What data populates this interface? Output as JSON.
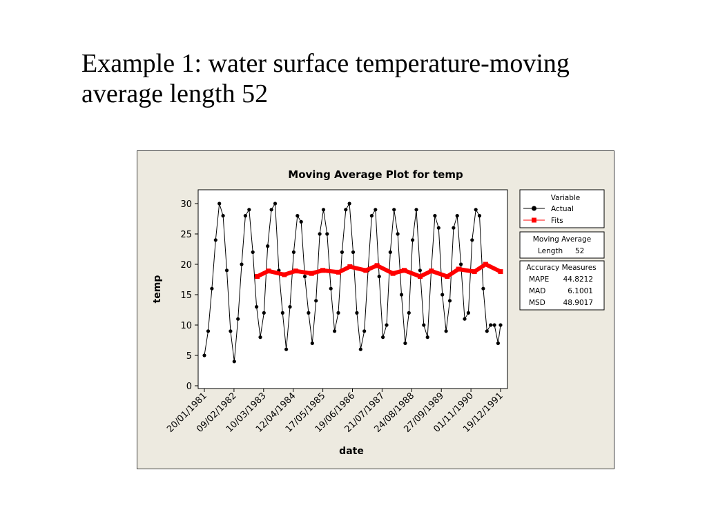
{
  "slide": {
    "title_line1": "Example 1: water surface temperature-moving",
    "title_line2": "average length 52"
  },
  "colors": {
    "actual": "#000000",
    "fits": "#ff0000",
    "panel_bg": "#edeae0",
    "plot_bg": "#ffffff"
  },
  "legends": {
    "variable": {
      "title": "Variable",
      "actual": "Actual",
      "fits": "Fits"
    },
    "moving_average": {
      "title": "Moving Average",
      "length_label": "Length",
      "length_value": "52"
    },
    "accuracy": {
      "title": "Accuracy Measures",
      "rows": [
        {
          "name": "MAPE",
          "value": "44.8212"
        },
        {
          "name": "MAD",
          "value": "6.1001"
        },
        {
          "name": "MSD",
          "value": "48.9017"
        }
      ]
    }
  },
  "chart_data": {
    "type": "line",
    "title": "Moving Average Plot for temp",
    "xlabel": "date",
    "ylabel": "temp",
    "ylim": [
      0,
      32
    ],
    "yticks": [
      0,
      5,
      10,
      15,
      20,
      25,
      30
    ],
    "ytick_labels": [
      "0",
      "5",
      "10",
      "15",
      "20",
      "25",
      "30"
    ],
    "xtick_labels": [
      "20/01/1981",
      "09/02/1982",
      "10/03/1983",
      "12/04/1984",
      "17/05/1985",
      "19/06/1986",
      "21/07/1987",
      "24/08/1988",
      "27/09/1989",
      "01/11/1990",
      "19/12/1991"
    ],
    "x_range": [
      "1981-01-20",
      "1991-12-19"
    ],
    "legend_position": "right",
    "grid": false,
    "series": [
      {
        "name": "Actual",
        "marker": "circle",
        "color": "#000000",
        "x": [
          "1981-01-20",
          "1981-03-12",
          "1981-05-01",
          "1981-06-20",
          "1981-08-10",
          "1981-09-29",
          "1981-11-18",
          "1982-01-07",
          "1982-02-26",
          "1982-04-17",
          "1982-06-06",
          "1982-07-26",
          "1982-09-14",
          "1982-11-03",
          "1982-12-23",
          "1983-02-11",
          "1983-04-02",
          "1983-05-22",
          "1983-07-11",
          "1983-08-30",
          "1983-10-19",
          "1983-12-08",
          "1984-01-27",
          "1984-03-17",
          "1984-05-06",
          "1984-06-25",
          "1984-08-14",
          "1984-10-03",
          "1984-11-22",
          "1985-01-11",
          "1985-03-02",
          "1985-04-21",
          "1985-06-10",
          "1985-07-30",
          "1985-09-18",
          "1985-11-07",
          "1985-12-27",
          "1986-02-15",
          "1986-04-06",
          "1986-05-26",
          "1986-07-15",
          "1986-09-03",
          "1986-10-23",
          "1986-12-12",
          "1987-01-31",
          "1987-03-22",
          "1987-05-11",
          "1987-06-30",
          "1987-08-19",
          "1987-10-08",
          "1987-11-27",
          "1988-01-16",
          "1988-03-06",
          "1988-04-25",
          "1988-06-14",
          "1988-08-03",
          "1988-09-22",
          "1988-11-11",
          "1988-12-31",
          "1989-02-19",
          "1989-04-10",
          "1989-05-30",
          "1989-07-19",
          "1989-09-07",
          "1989-10-27",
          "1989-12-16",
          "1990-02-04",
          "1990-03-26",
          "1990-05-15",
          "1990-07-04",
          "1990-08-23",
          "1990-10-12",
          "1990-12-01",
          "1991-01-20",
          "1991-03-11",
          "1991-04-30",
          "1991-06-19",
          "1991-08-08",
          "1991-09-27",
          "1991-11-16",
          "1991-12-19"
        ],
        "values": [
          5,
          9,
          16,
          24,
          30,
          28,
          19,
          9,
          4,
          11,
          20,
          28,
          29,
          22,
          13,
          8,
          12,
          23,
          29,
          30,
          19,
          12,
          6,
          13,
          22,
          28,
          27,
          18,
          12,
          7,
          14,
          25,
          29,
          25,
          16,
          9,
          12,
          22,
          29,
          30,
          22,
          12,
          6,
          9,
          19,
          28,
          29,
          18,
          8,
          10,
          22,
          29,
          25,
          15,
          7,
          12,
          24,
          29,
          19,
          10,
          8,
          19,
          28,
          26,
          15,
          9,
          14,
          26,
          28,
          20,
          11,
          12,
          24,
          29,
          28,
          16,
          9,
          10,
          10,
          7,
          10
        ]
      },
      {
        "name": "Fits",
        "marker": "square",
        "color": "#ff0000",
        "x": [
          "1983-01-01",
          "1983-06-01",
          "1984-01-01",
          "1984-06-01",
          "1985-01-01",
          "1985-06-01",
          "1986-01-01",
          "1986-06-01",
          "1987-01-01",
          "1987-06-01",
          "1988-01-01",
          "1988-06-01",
          "1989-01-01",
          "1989-06-01",
          "1990-01-01",
          "1990-06-01",
          "1991-01-01",
          "1991-06-01",
          "1991-12-19"
        ],
        "values": [
          18.0,
          18.9,
          18.3,
          18.9,
          18.5,
          19.0,
          18.7,
          19.6,
          19.0,
          19.8,
          18.5,
          19.0,
          18.0,
          18.9,
          18.0,
          19.2,
          18.8,
          20.0,
          18.8
        ]
      }
    ]
  }
}
